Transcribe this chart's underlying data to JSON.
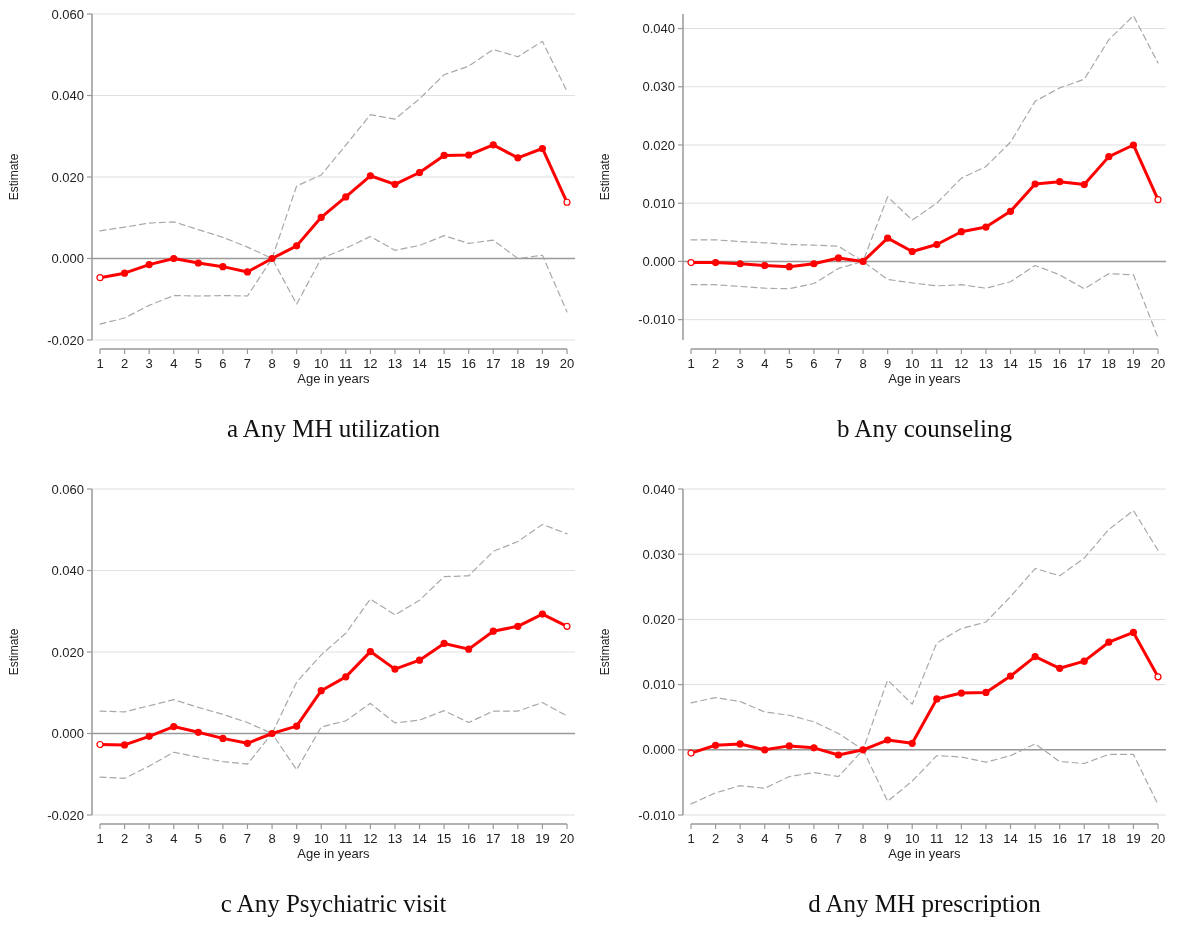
{
  "chart_data": [
    {
      "type": "line",
      "title": "a Any MH utilization",
      "xlabel": "Age in years",
      "ylabel": "Estimate",
      "x": [
        1,
        2,
        3,
        4,
        5,
        6,
        7,
        8,
        9,
        10,
        11,
        12,
        13,
        14,
        15,
        16,
        17,
        18,
        19,
        20
      ],
      "xlim": [
        1,
        20
      ],
      "xticks": [
        1,
        2,
        3,
        4,
        5,
        6,
        7,
        8,
        9,
        10,
        11,
        12,
        13,
        14,
        15,
        16,
        17,
        18,
        19,
        20
      ],
      "ylim": [
        -0.02,
        0.06
      ],
      "yticks": [
        {
          "value": -0.02,
          "label": "-0.020"
        },
        {
          "value": 0,
          "label": "0.000"
        },
        {
          "value": 0.02,
          "label": "0.020"
        },
        {
          "value": 0.04,
          "label": "0.040"
        },
        {
          "value": 0.06,
          "label": "0.060"
        }
      ],
      "grid": "y",
      "ref_lines": [
        {
          "axis": "y",
          "value": 0,
          "color": "#999999"
        }
      ],
      "series": [
        {
          "color": "#a8a8a8",
          "line_style": "dashed",
          "marker": "none",
          "values": [
            0.0068,
            0.0077,
            0.0087,
            0.009,
            0.0071,
            0.0052,
            0.0028,
            0,
            0.0178,
            0.0205,
            0.0278,
            0.0353,
            0.0342,
            0.0392,
            0.0451,
            0.0472,
            0.0513,
            0.0495,
            0.0533,
            0.041
          ]
        },
        {
          "color": "#a8a8a8",
          "line_style": "dashed",
          "marker": "none",
          "values": [
            -0.0161,
            -0.0146,
            -0.0115,
            -0.0091,
            -0.0092,
            -0.0091,
            -0.0092,
            0,
            -0.0112,
            0.0,
            0.0025,
            0.0054,
            0.002,
            0.0032,
            0.0056,
            0.0037,
            0.0045,
            0.0,
            0.0008,
            -0.0131
          ]
        },
        {
          "color": "#ff0000",
          "line_style": "solid",
          "marker": "circle",
          "values": [
            -0.0047,
            -0.0036,
            -0.0015,
            0,
            -0.0011,
            -0.002,
            -0.0033,
            0,
            0.0031,
            0.0101,
            0.0151,
            0.0203,
            0.0182,
            0.0211,
            0.0253,
            0.0254,
            0.0279,
            0.0247,
            0.027,
            0.0138
          ]
        }
      ]
    },
    {
      "type": "line",
      "title": "b Any counseling",
      "xlabel": "Age in years",
      "ylabel": "Estimate",
      "x": [
        1,
        2,
        3,
        4,
        5,
        6,
        7,
        8,
        9,
        10,
        11,
        12,
        13,
        14,
        15,
        16,
        17,
        18,
        19,
        20
      ],
      "xlim": [
        1,
        20
      ],
      "xticks": [
        1,
        2,
        3,
        4,
        5,
        6,
        7,
        8,
        9,
        10,
        11,
        12,
        13,
        14,
        15,
        16,
        17,
        18,
        19,
        20
      ],
      "ylim": [
        -0.0135,
        0.0425
      ],
      "yticks": [
        {
          "value": -0.01,
          "label": "-0.010"
        },
        {
          "value": 0,
          "label": "0.000"
        },
        {
          "value": 0.01,
          "label": "0.010"
        },
        {
          "value": 0.02,
          "label": "0.020"
        },
        {
          "value": 0.03,
          "label": "0.030"
        },
        {
          "value": 0.04,
          "label": "0.040"
        }
      ],
      "grid": "y",
      "ref_lines": [
        {
          "axis": "y",
          "value": 0,
          "color": "#999999"
        }
      ],
      "series": [
        {
          "color": "#a8a8a8",
          "line_style": "dashed",
          "marker": "none",
          "values": [
            0.0037,
            0.0037,
            0.0034,
            0.0032,
            0.0029,
            0.0028,
            0.0026,
            0,
            0.0111,
            0.0071,
            0.01,
            0.0143,
            0.0163,
            0.0205,
            0.0275,
            0.0298,
            0.0313,
            0.0381,
            0.0422,
            0.0341
          ]
        },
        {
          "color": "#a8a8a8",
          "line_style": "dashed",
          "marker": "none",
          "values": [
            -0.004,
            -0.004,
            -0.0043,
            -0.0046,
            -0.0047,
            -0.0038,
            -0.0012,
            0,
            -0.0031,
            -0.0037,
            -0.0042,
            -0.004,
            -0.0046,
            -0.0035,
            -0.0007,
            -0.0023,
            -0.0047,
            -0.0021,
            -0.0023,
            -0.0131
          ]
        },
        {
          "color": "#ff0000",
          "line_style": "solid",
          "marker": "circle",
          "values": [
            -0.0002,
            -0.0002,
            -0.0004,
            -0.0007,
            -0.0009,
            -0.0004,
            0.0006,
            0,
            0.004,
            0.0017,
            0.0029,
            0.0051,
            0.0059,
            0.0086,
            0.0133,
            0.0137,
            0.0132,
            0.018,
            0.02,
            0.0106
          ]
        }
      ]
    },
    {
      "type": "line",
      "title": "c Any Psychiatric visit",
      "xlabel": "Age in years",
      "ylabel": "Estimate",
      "x": [
        1,
        2,
        3,
        4,
        5,
        6,
        7,
        8,
        9,
        10,
        11,
        12,
        13,
        14,
        15,
        16,
        17,
        18,
        19,
        20
      ],
      "xlim": [
        1,
        20
      ],
      "xticks": [
        1,
        2,
        3,
        4,
        5,
        6,
        7,
        8,
        9,
        10,
        11,
        12,
        13,
        14,
        15,
        16,
        17,
        18,
        19,
        20
      ],
      "ylim": [
        -0.02,
        0.06
      ],
      "yticks": [
        {
          "value": -0.02,
          "label": "-0.020"
        },
        {
          "value": 0,
          "label": "0.000"
        },
        {
          "value": 0.02,
          "label": "0.020"
        },
        {
          "value": 0.04,
          "label": "0.040"
        },
        {
          "value": 0.06,
          "label": "0.060"
        }
      ],
      "grid": "y",
      "ref_lines": [
        {
          "axis": "y",
          "value": 0,
          "color": "#999999"
        }
      ],
      "series": [
        {
          "color": "#a8a8a8",
          "line_style": "dashed",
          "marker": "none",
          "values": [
            0.0055,
            0.0053,
            0.0068,
            0.0083,
            0.0064,
            0.0047,
            0.0027,
            0,
            0.0126,
            0.0193,
            0.0246,
            0.033,
            0.0291,
            0.0327,
            0.0385,
            0.0387,
            0.0447,
            0.0471,
            0.0513,
            0.049
          ]
        },
        {
          "color": "#a8a8a8",
          "line_style": "dashed",
          "marker": "none",
          "values": [
            -0.0107,
            -0.011,
            -0.008,
            -0.0046,
            -0.0058,
            -0.0069,
            -0.0075,
            0,
            -0.0089,
            0.0016,
            0.0031,
            0.0074,
            0.0026,
            0.0033,
            0.0056,
            0.0027,
            0.0055,
            0.0055,
            0.0076,
            0.0043
          ]
        },
        {
          "color": "#ff0000",
          "line_style": "solid",
          "marker": "circle",
          "values": [
            -0.0027,
            -0.0028,
            -0.0007,
            0.0017,
            0.0003,
            -0.0012,
            -0.0024,
            0,
            0.0018,
            0.0105,
            0.0139,
            0.0201,
            0.0158,
            0.018,
            0.0221,
            0.0207,
            0.0251,
            0.0263,
            0.0293,
            0.0263
          ]
        }
      ]
    },
    {
      "type": "line",
      "title": "d Any MH prescription",
      "xlabel": "Age in years",
      "ylabel": "Estimate",
      "x": [
        1,
        2,
        3,
        4,
        5,
        6,
        7,
        8,
        9,
        10,
        11,
        12,
        13,
        14,
        15,
        16,
        17,
        18,
        19,
        20
      ],
      "xlim": [
        1,
        20
      ],
      "xticks": [
        1,
        2,
        3,
        4,
        5,
        6,
        7,
        8,
        9,
        10,
        11,
        12,
        13,
        14,
        15,
        16,
        17,
        18,
        19,
        20
      ],
      "ylim": [
        -0.01,
        0.04
      ],
      "yticks": [
        {
          "value": -0.01,
          "label": "-0.010"
        },
        {
          "value": 0,
          "label": "0.000"
        },
        {
          "value": 0.01,
          "label": "0.010"
        },
        {
          "value": 0.02,
          "label": "0.020"
        },
        {
          "value": 0.03,
          "label": "0.030"
        },
        {
          "value": 0.04,
          "label": "0.040"
        }
      ],
      "grid": "y",
      "ref_lines": [
        {
          "axis": "y",
          "value": 0,
          "color": "#999999"
        }
      ],
      "series": [
        {
          "color": "#a8a8a8",
          "line_style": "dashed",
          "marker": "none",
          "values": [
            0.0072,
            0.008,
            0.0074,
            0.0058,
            0.0053,
            0.0043,
            0.0025,
            0,
            0.0107,
            0.007,
            0.0164,
            0.0186,
            0.0196,
            0.0235,
            0.0278,
            0.0267,
            0.0294,
            0.0338,
            0.0367,
            0.0306
          ]
        },
        {
          "color": "#a8a8a8",
          "line_style": "dashed",
          "marker": "none",
          "values": [
            -0.0083,
            -0.0066,
            -0.0055,
            -0.0059,
            -0.0041,
            -0.0035,
            -0.0041,
            0,
            -0.0079,
            -0.0048,
            -0.0009,
            -0.0011,
            -0.0019,
            -0.0009,
            0.0009,
            -0.0018,
            -0.0021,
            -0.0007,
            -0.0007,
            -0.0084
          ]
        },
        {
          "color": "#ff0000",
          "line_style": "solid",
          "marker": "circle",
          "values": [
            -0.0005,
            0.0007,
            0.0009,
            0,
            0.0006,
            0.0003,
            -0.0008,
            0,
            0.0015,
            0.001,
            0.0078,
            0.0087,
            0.0088,
            0.0113,
            0.0143,
            0.0125,
            0.0136,
            0.0165,
            0.018,
            0.0112
          ]
        }
      ]
    }
  ]
}
